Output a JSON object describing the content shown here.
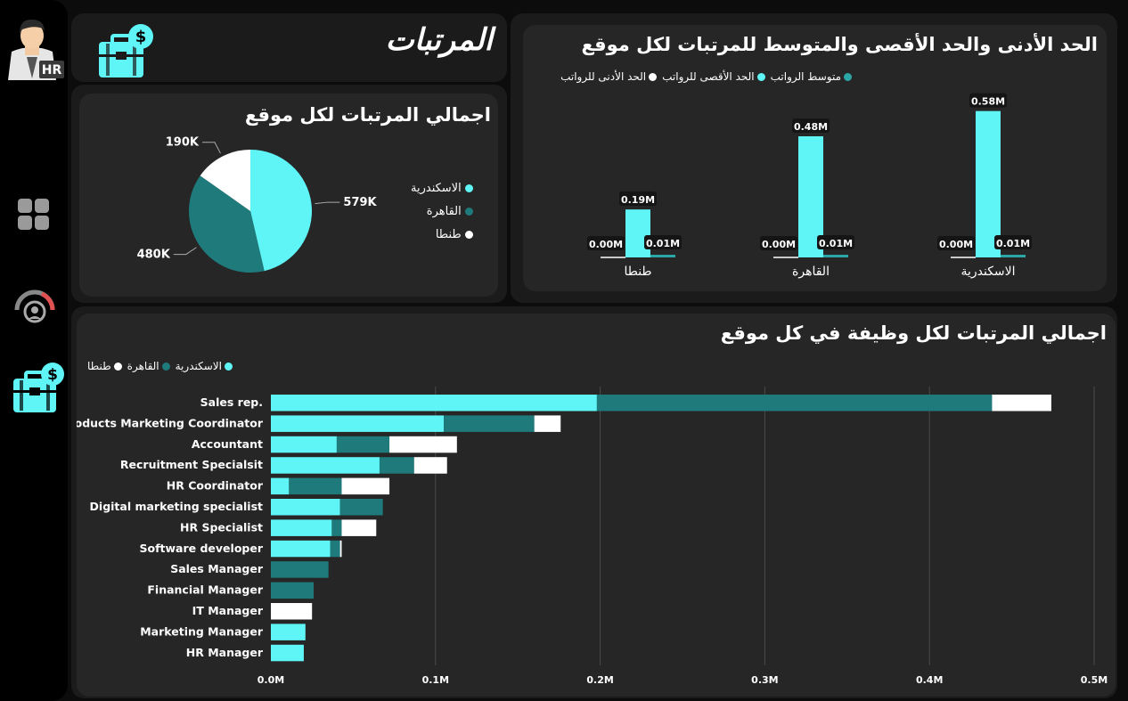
{
  "page": {
    "title": "المرتبات",
    "sidebar_badge": "HR"
  },
  "colors": {
    "alex": "#5ff5f7",
    "cairo": "#1e7a7b",
    "tanta": "#ffffff",
    "card": "#262626",
    "panel": "#1b1b1b"
  },
  "pie_card": {
    "title": "اجمالي المرتبات لكل موقع",
    "legend": [
      "الاسكندرية",
      "القاهرة",
      "طنطا"
    ]
  },
  "minmax_card": {
    "title": "الحد الأدنى والحد الأقصى والمتوسط للمرتبات لكل موقع",
    "legend": [
      "متوسط الرواتب",
      "الحد الأقصى للرواتب",
      "الحد الأدنى للرواتب"
    ]
  },
  "jobs_card": {
    "title": "اجمالي المرتبات لكل وظيفة في كل موقع",
    "legend": [
      "الاسكندرية",
      "القاهرة",
      "طنطا"
    ]
  },
  "chart_data": [
    {
      "type": "pie",
      "title": "اجمالي المرتبات لكل موقع",
      "categories": [
        "الاسكندرية",
        "القاهرة",
        "طنطا"
      ],
      "values": [
        579,
        480,
        190
      ],
      "labels": [
        "579K",
        "480K",
        "190K"
      ]
    },
    {
      "type": "bar",
      "title": "الحد الأدنى والحد الأقصى والمتوسط للمرتبات لكل موقع",
      "categories": [
        "الاسكندرية",
        "القاهرة",
        "طنطا"
      ],
      "series": [
        {
          "name": "الحد الأدنى للرواتب",
          "values": [
            0.0,
            0.0,
            0.0
          ],
          "labels": [
            "0.00M",
            "0.00M",
            "0.00M"
          ]
        },
        {
          "name": "الحد الأقصى للرواتب",
          "values": [
            0.58,
            0.48,
            0.19
          ],
          "labels": [
            "0.58M",
            "0.48M",
            "0.19M"
          ]
        },
        {
          "name": "متوسط الرواتب",
          "values": [
            0.01,
            0.01,
            0.01
          ],
          "labels": [
            "0.01M",
            "0.01M",
            "0.01M"
          ]
        }
      ],
      "ylim": [
        0,
        0.6
      ]
    },
    {
      "type": "bar",
      "orientation": "horizontal",
      "stacked": true,
      "title": "اجمالي المرتبات لكل وظيفة في كل موقع",
      "categories": [
        "Sales rep.",
        "Products Marketing Coordinator",
        "Accountant",
        "Recruitment Specialsit",
        "HR Coordinator",
        "Digital marketing specialist",
        "HR Specialist",
        "Software developer",
        "Sales Manager",
        "Financial Manager",
        "IT Manager",
        "Marketing Manager",
        "HR Manager"
      ],
      "series": [
        {
          "name": "الاسكندرية",
          "values": [
            0.198,
            0.105,
            0.04,
            0.066,
            0.011,
            0.042,
            0.037,
            0.036,
            0,
            0,
            0,
            0.021,
            0.02
          ]
        },
        {
          "name": "القاهرة",
          "values": [
            0.24,
            0.055,
            0.032,
            0.021,
            0.032,
            0.026,
            0.006,
            0.006,
            0.035,
            0.026,
            0,
            0,
            0
          ]
        },
        {
          "name": "طنطا",
          "values": [
            0.036,
            0.016,
            0.041,
            0.02,
            0.029,
            0,
            0.021,
            0.001,
            0,
            0,
            0.025,
            0,
            0
          ]
        }
      ],
      "xticks": [
        "0.0M",
        "0.1M",
        "0.2M",
        "0.3M",
        "0.4M",
        "0.5M"
      ],
      "xlim": [
        0,
        0.5
      ],
      "grid": true
    }
  ]
}
